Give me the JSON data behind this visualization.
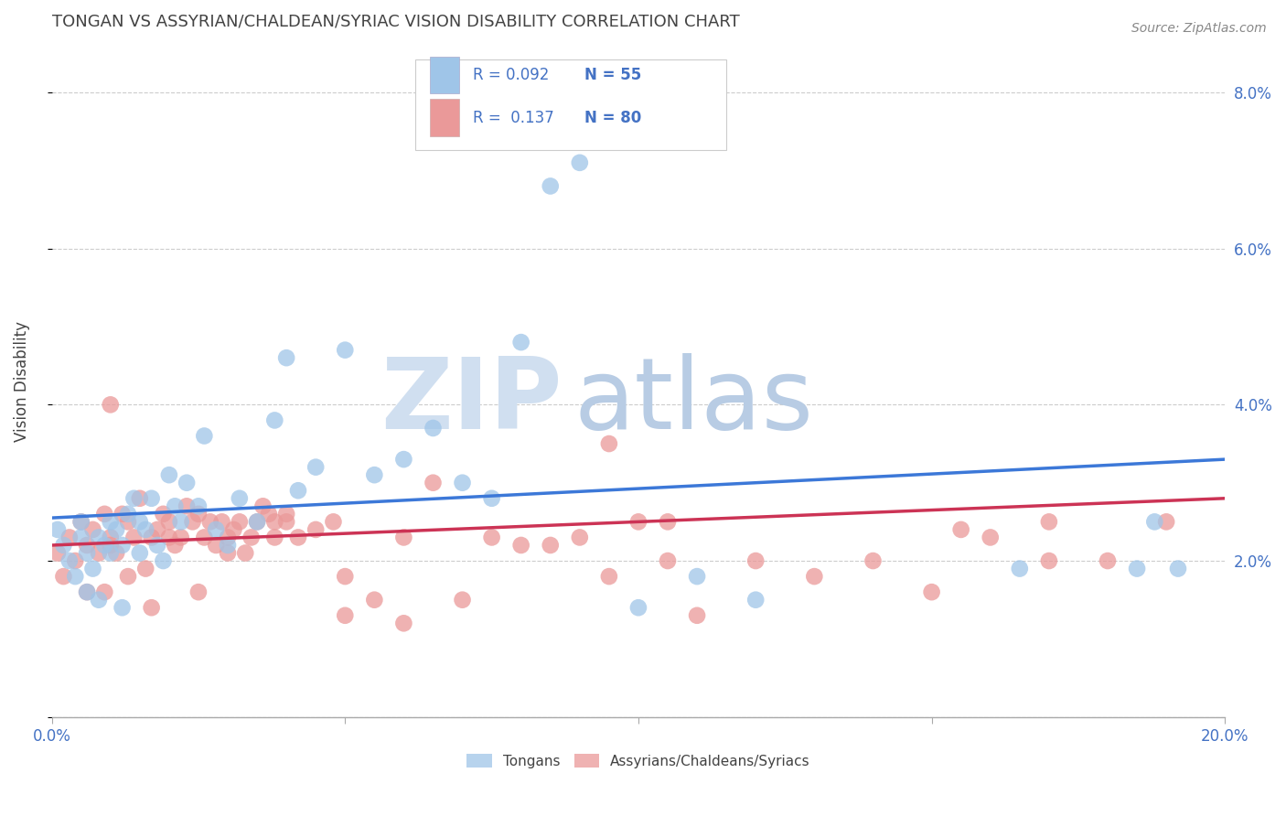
{
  "title": "TONGAN VS ASSYRIAN/CHALDEAN/SYRIAC VISION DISABILITY CORRELATION CHART",
  "source": "Source: ZipAtlas.com",
  "ylabel": "Vision Disability",
  "xlim": [
    0.0,
    0.2
  ],
  "ylim": [
    0.0,
    0.086
  ],
  "ytick_vals": [
    0.0,
    0.02,
    0.04,
    0.06,
    0.08
  ],
  "ytick_labels_right": [
    "",
    "2.0%",
    "4.0%",
    "6.0%",
    "8.0%"
  ],
  "xtick_vals": [
    0.0,
    0.05,
    0.1,
    0.15,
    0.2
  ],
  "xtick_labels": [
    "0.0%",
    "",
    "",
    "",
    "20.0%"
  ],
  "blue_color": "#9fc5e8",
  "pink_color": "#ea9999",
  "blue_line_color": "#3c78d8",
  "pink_line_color": "#cc3355",
  "background_color": "#ffffff",
  "grid_color": "#cccccc",
  "axis_tick_color": "#4472c4",
  "title_color": "#434343",
  "watermark_zip_color": "#d0dff0",
  "watermark_atlas_color": "#b8cce4",
  "blue_line_start_y": 0.0255,
  "blue_line_end_y": 0.033,
  "pink_line_start_y": 0.022,
  "pink_line_end_y": 0.028,
  "tongans_x": [
    0.001,
    0.002,
    0.003,
    0.004,
    0.005,
    0.005,
    0.006,
    0.006,
    0.007,
    0.008,
    0.008,
    0.009,
    0.01,
    0.01,
    0.011,
    0.012,
    0.012,
    0.013,
    0.014,
    0.015,
    0.015,
    0.016,
    0.017,
    0.018,
    0.019,
    0.02,
    0.021,
    0.022,
    0.023,
    0.025,
    0.026,
    0.028,
    0.03,
    0.032,
    0.035,
    0.038,
    0.04,
    0.042,
    0.045,
    0.05,
    0.055,
    0.06,
    0.065,
    0.07,
    0.075,
    0.08,
    0.085,
    0.09,
    0.1,
    0.11,
    0.12,
    0.165,
    0.185,
    0.188,
    0.192
  ],
  "tongans_y": [
    0.024,
    0.022,
    0.02,
    0.018,
    0.023,
    0.025,
    0.021,
    0.016,
    0.019,
    0.023,
    0.015,
    0.022,
    0.025,
    0.021,
    0.024,
    0.014,
    0.022,
    0.026,
    0.028,
    0.025,
    0.021,
    0.024,
    0.028,
    0.022,
    0.02,
    0.031,
    0.027,
    0.025,
    0.03,
    0.027,
    0.036,
    0.024,
    0.022,
    0.028,
    0.025,
    0.038,
    0.046,
    0.029,
    0.032,
    0.047,
    0.031,
    0.033,
    0.037,
    0.03,
    0.028,
    0.048,
    0.068,
    0.071,
    0.014,
    0.018,
    0.015,
    0.019,
    0.019,
    0.025,
    0.019
  ],
  "assyrians_x": [
    0.001,
    0.002,
    0.003,
    0.004,
    0.005,
    0.006,
    0.006,
    0.007,
    0.008,
    0.009,
    0.009,
    0.01,
    0.011,
    0.012,
    0.013,
    0.013,
    0.014,
    0.015,
    0.016,
    0.017,
    0.017,
    0.018,
    0.019,
    0.02,
    0.021,
    0.022,
    0.023,
    0.024,
    0.025,
    0.026,
    0.027,
    0.028,
    0.029,
    0.03,
    0.031,
    0.032,
    0.033,
    0.034,
    0.035,
    0.036,
    0.037,
    0.038,
    0.04,
    0.042,
    0.045,
    0.048,
    0.05,
    0.055,
    0.06,
    0.065,
    0.07,
    0.075,
    0.08,
    0.085,
    0.09,
    0.095,
    0.1,
    0.105,
    0.11,
    0.12,
    0.13,
    0.14,
    0.15,
    0.16,
    0.17,
    0.18,
    0.19,
    0.01,
    0.025,
    0.038,
    0.05,
    0.06,
    0.095,
    0.105,
    0.155,
    0.17,
    0.01,
    0.02,
    0.03,
    0.04
  ],
  "assyrians_y": [
    0.021,
    0.018,
    0.023,
    0.02,
    0.025,
    0.022,
    0.016,
    0.024,
    0.021,
    0.026,
    0.016,
    0.023,
    0.021,
    0.026,
    0.025,
    0.018,
    0.023,
    0.028,
    0.019,
    0.023,
    0.014,
    0.024,
    0.026,
    0.025,
    0.022,
    0.023,
    0.027,
    0.025,
    0.026,
    0.023,
    0.025,
    0.022,
    0.025,
    0.023,
    0.024,
    0.025,
    0.021,
    0.023,
    0.025,
    0.027,
    0.026,
    0.023,
    0.026,
    0.023,
    0.024,
    0.025,
    0.013,
    0.015,
    0.023,
    0.03,
    0.015,
    0.023,
    0.022,
    0.022,
    0.023,
    0.018,
    0.025,
    0.02,
    0.013,
    0.02,
    0.018,
    0.02,
    0.016,
    0.023,
    0.025,
    0.02,
    0.025,
    0.04,
    0.016,
    0.025,
    0.018,
    0.012,
    0.035,
    0.025,
    0.024,
    0.02,
    0.022,
    0.023,
    0.021,
    0.025
  ]
}
